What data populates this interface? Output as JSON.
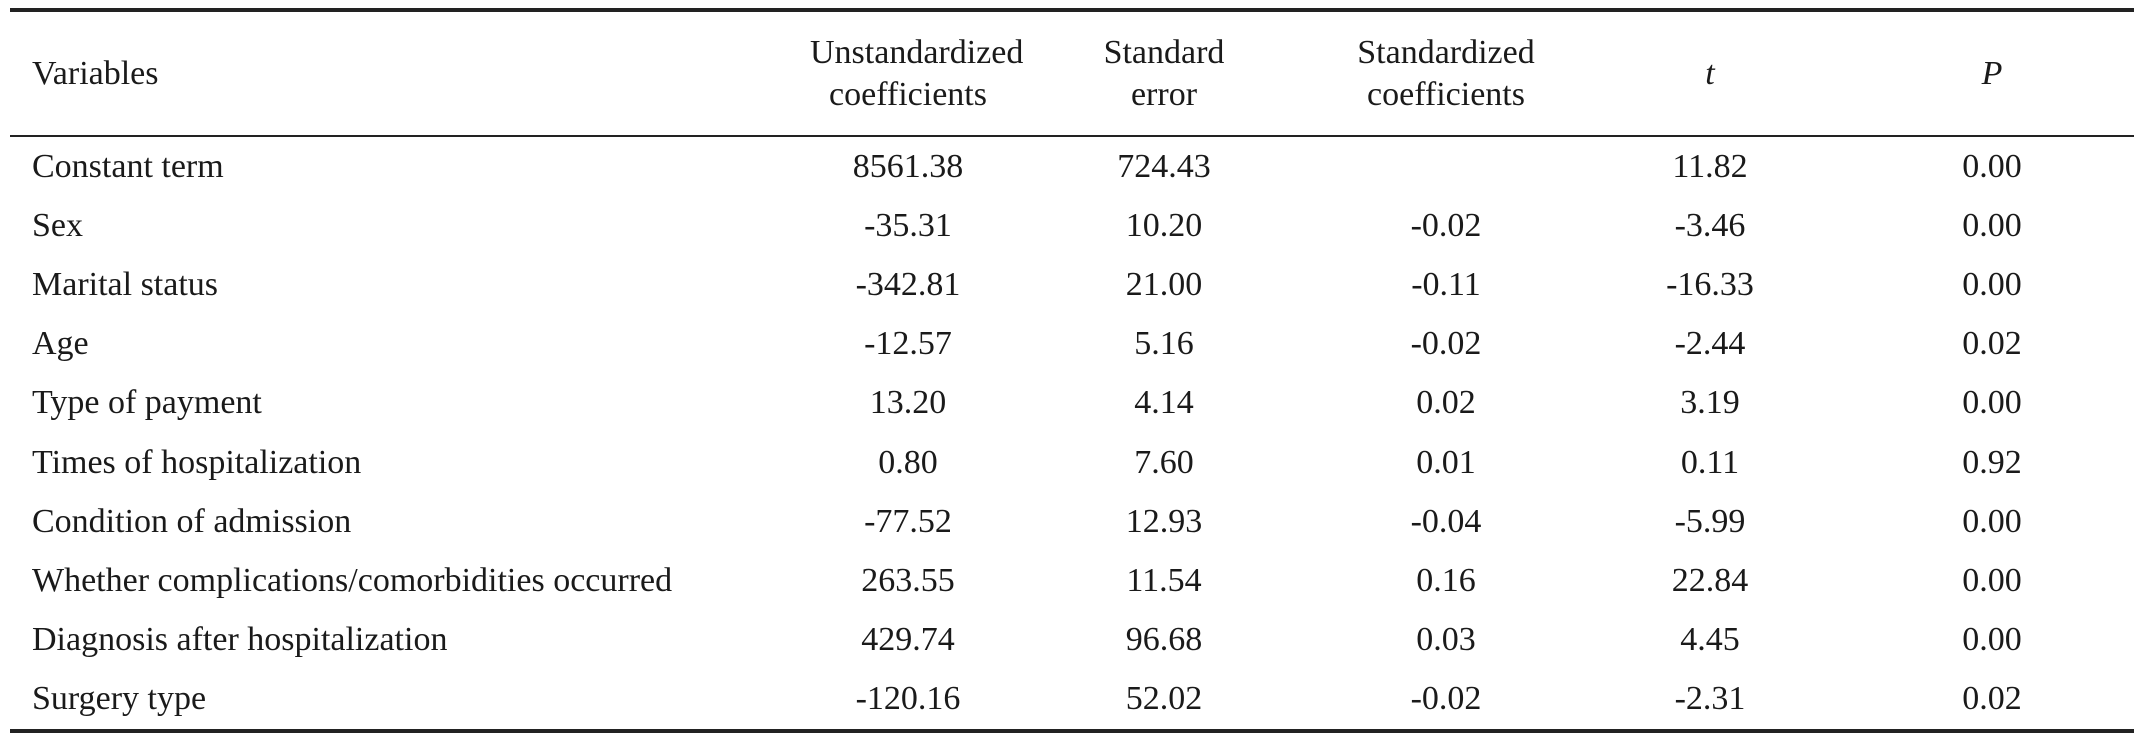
{
  "table": {
    "headers": {
      "variables": "Variables",
      "unstandardized_line1": "Unstandardized",
      "unstandardized_line2": "coefficients",
      "standard_error_line1": "Standard",
      "standard_error_line2": "error",
      "standardized_line1": "Standardized",
      "standardized_line2": "coefficients",
      "t": "t",
      "p": "P"
    },
    "rows": [
      {
        "variable": "Constant term",
        "unstd": "8561.38",
        "se": "724.43",
        "std": "",
        "t": "11.82",
        "p": "0.00"
      },
      {
        "variable": "Sex",
        "unstd": "-35.31",
        "se": "10.20",
        "std": "-0.02",
        "t": "-3.46",
        "p": "0.00"
      },
      {
        "variable": "Marital status",
        "unstd": "-342.81",
        "se": "21.00",
        "std": "-0.11",
        "t": "-16.33",
        "p": "0.00"
      },
      {
        "variable": "Age",
        "unstd": "-12.57",
        "se": "5.16",
        "std": "-0.02",
        "t": "-2.44",
        "p": "0.02"
      },
      {
        "variable": "Type of payment",
        "unstd": "13.20",
        "se": "4.14",
        "std": "0.02",
        "t": "3.19",
        "p": "0.00"
      },
      {
        "variable": "Times of hospitalization",
        "unstd": "0.80",
        "se": "7.60",
        "std": "0.01",
        "t": "0.11",
        "p": "0.92"
      },
      {
        "variable": "Condition of admission",
        "unstd": "-77.52",
        "se": "12.93",
        "std": "-0.04",
        "t": "-5.99",
        "p": "0.00"
      },
      {
        "variable": "Whether complications/comorbidities occurred",
        "unstd": "263.55",
        "se": "11.54",
        "std": "0.16",
        "t": "22.84",
        "p": "0.00"
      },
      {
        "variable": "Diagnosis after hospitalization",
        "unstd": "429.74",
        "se": "96.68",
        "std": "0.03",
        "t": "4.45",
        "p": "0.00"
      },
      {
        "variable": "Surgery type",
        "unstd": "-120.16",
        "se": "52.02",
        "std": "-0.02",
        "t": "-2.31",
        "p": "0.02"
      }
    ]
  }
}
